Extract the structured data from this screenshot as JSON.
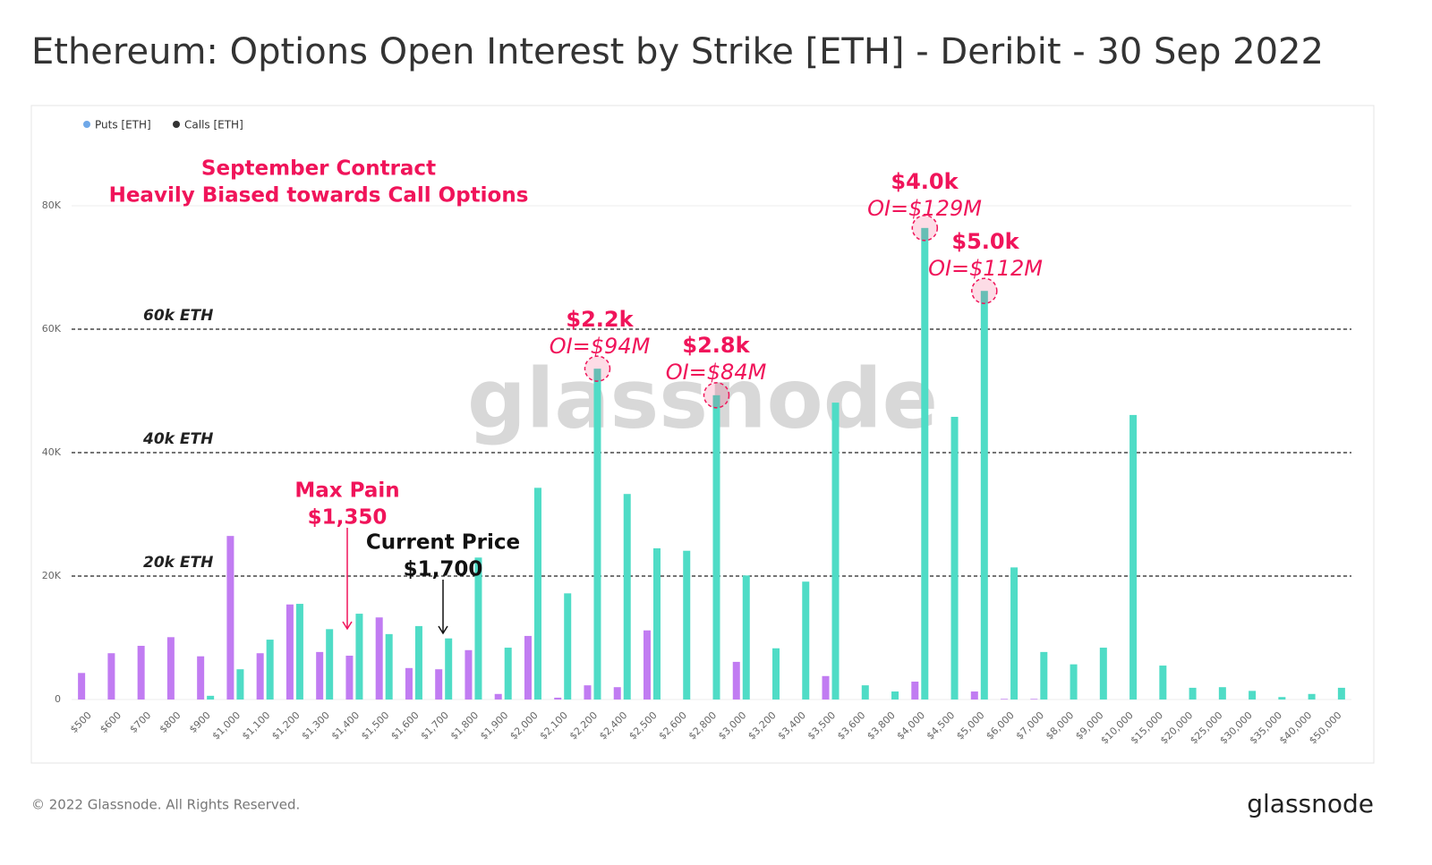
{
  "chart_data": {
    "type": "bar",
    "title": "Ethereum: Options Open Interest by Strike [ETH] - Deribit - 30 Sep 2022",
    "categories": [
      "$500",
      "$600",
      "$700",
      "$800",
      "$900",
      "$1,000",
      "$1,100",
      "$1,200",
      "$1,300",
      "$1,400",
      "$1,500",
      "$1,600",
      "$1,700",
      "$1,800",
      "$1,900",
      "$2,000",
      "$2,100",
      "$2,200",
      "$2,400",
      "$2,500",
      "$2,600",
      "$2,800",
      "$3,000",
      "$3,200",
      "$3,400",
      "$3,500",
      "$3,600",
      "$3,800",
      "$4,000",
      "$4,500",
      "$5,000",
      "$6,000",
      "$7,000",
      "$8,000",
      "$9,000",
      "$10,000",
      "$15,000",
      "$20,000",
      "$25,000",
      "$30,000",
      "$35,000",
      "$40,000",
      "$50,000"
    ],
    "series": [
      {
        "name": "Puts [ETH]",
        "color": "#c17cf2",
        "legend_color": "#6fa8e8",
        "values": [
          4300,
          7500,
          8700,
          10100,
          7000,
          26500,
          7500,
          15400,
          7700,
          7100,
          13300,
          5100,
          4900,
          8000,
          900,
          10300,
          300,
          2300,
          2000,
          11200,
          0,
          0,
          6100,
          0,
          0,
          3800,
          0,
          0,
          2900,
          0,
          1300,
          100,
          100,
          0,
          0,
          0,
          0,
          0,
          0,
          0,
          0,
          0,
          0
        ]
      },
      {
        "name": "Calls [ETH]",
        "color": "#4fdcc6",
        "legend_color": "#333333",
        "values": [
          0,
          0,
          0,
          0,
          600,
          4900,
          9700,
          15500,
          11400,
          13900,
          10600,
          11900,
          9900,
          23000,
          8400,
          34300,
          17200,
          53600,
          33300,
          24500,
          24100,
          49300,
          20100,
          8300,
          19100,
          48100,
          2300,
          1300,
          76400,
          45800,
          66200,
          21400,
          7700,
          5700,
          8400,
          46100,
          5500,
          1900,
          2000,
          1400,
          400,
          900,
          1900
        ]
      }
    ],
    "ylim": [
      0,
      80000
    ],
    "yticks": [
      0,
      {
        "value": 20000,
        "label": "20K"
      },
      {
        "value": 40000,
        "label": "40K"
      },
      {
        "value": 60000,
        "label": "60K"
      },
      {
        "value": 80000,
        "label": "80K"
      }
    ],
    "grid": true,
    "legend": "top-left",
    "reference_lines": [
      {
        "value": 60000,
        "label": "60k ETH"
      },
      {
        "value": 40000,
        "label": "40k ETH"
      },
      {
        "value": 20000,
        "label": "20k ETH"
      }
    ],
    "annotations": [
      {
        "lines": [
          "September Contract",
          "Heavily Biased towards Call Options"
        ]
      },
      {
        "lines": [
          "$2.2k",
          "OI=$94M"
        ]
      },
      {
        "lines": [
          "$2.8k",
          "OI=$84M"
        ]
      },
      {
        "lines": [
          "$4.0k",
          "OI=$129M"
        ]
      },
      {
        "lines": [
          "$5.0k",
          "OI=$112M"
        ]
      },
      {
        "lines": [
          "Max Pain",
          "$1,350"
        ]
      },
      {
        "lines": [
          "Current Price",
          "$1,700"
        ]
      }
    ],
    "watermark": "glassnode",
    "footer": "© 2022 Glassnode. All Rights Reserved.",
    "logo": "glassnode"
  }
}
